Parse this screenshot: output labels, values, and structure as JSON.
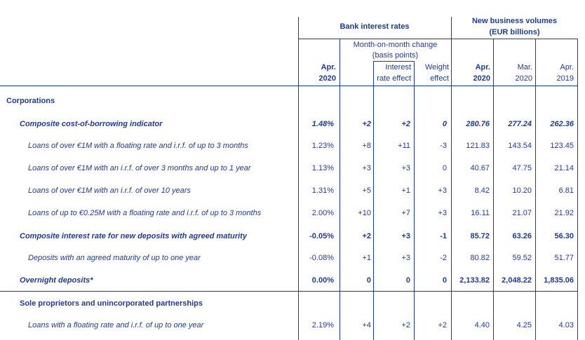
{
  "header": {
    "bank_rates": "Bank interest rates",
    "volumes_line1": "New business volumes",
    "volumes_line2": "(EUR billions)",
    "mom_line1": "Month-on-month change",
    "mom_line2": "(basis points)",
    "apr_label": "Apr.",
    "year_2020": "2020",
    "interest_line1": "Interest",
    "interest_line2": "rate effect",
    "weight_line1": "Weight",
    "weight_line2": "effect",
    "vol_apr": "Apr.",
    "vol_apr_year": "2020",
    "vol_mar": "Mar.",
    "vol_mar_year": "2020",
    "vol_apr19": "Apr.",
    "vol_apr19_year": "2019"
  },
  "sections": {
    "corporations": "Corporations",
    "sole": "Sole proprietors and unincorporated partnerships"
  },
  "rows": [
    {
      "label": "Composite cost-of-borrowing indicator",
      "rate": "1.48%",
      "mom": "+2",
      "ire": "+2",
      "we": "0",
      "apr20": "280.76",
      "mar20": "277.24",
      "apr19": "262.36"
    },
    {
      "label": "Loans of over €1M with a floating rate and i.r.f. of up to 3 months",
      "rate": "1.23%",
      "mom": "+8",
      "ire": "+11",
      "we": "-3",
      "apr20": "121.83",
      "mar20": "143.54",
      "apr19": "123.45"
    },
    {
      "label": "Loans of over €1M with an i.r.f. of over 3 months and up to 1 year",
      "rate": "1.13%",
      "mom": "+3",
      "ire": "+3",
      "we": "0",
      "apr20": "40.67",
      "mar20": "47.75",
      "apr19": "21.14"
    },
    {
      "label": "Loans of over €1M with an i.r.f. of over 10 years",
      "rate": "1.31%",
      "mom": "+5",
      "ire": "+1",
      "we": "+3",
      "apr20": "8.42",
      "mar20": "10.20",
      "apr19": "6.81"
    },
    {
      "label": "Loans of up to €0.25M with a floating rate and i.r.f. of up to 3 months",
      "rate": "2.00%",
      "mom": "+10",
      "ire": "+7",
      "we": "+3",
      "apr20": "16.11",
      "mar20": "21.07",
      "apr19": "21.92"
    },
    {
      "label": "Composite interest rate for new deposits with agreed maturity",
      "rate": "-0.05%",
      "mom": "+2",
      "ire": "+3",
      "we": "-1",
      "apr20": "85.72",
      "mar20": "63.26",
      "apr19": "56.30"
    },
    {
      "label": "Deposits with an agreed maturity of up to one year",
      "rate": "-0.08%",
      "mom": "+1",
      "ire": "+3",
      "we": "-2",
      "apr20": "80.82",
      "mar20": "59.52",
      "apr19": "51.77"
    },
    {
      "label": "Overnight deposits*",
      "rate": "0.00%",
      "mom": "0",
      "ire": "0",
      "we": "0",
      "apr20": "2,133.82",
      "mar20": "2,048.22",
      "apr19": "1,835.06"
    },
    {
      "label": "Loans with a floating rate and i.r.f. of up to one year",
      "rate": "2.19%",
      "mom": "+4",
      "ire": "+2",
      "we": "+2",
      "apr20": "4.40",
      "mar20": "4.25",
      "apr19": "4.03"
    }
  ]
}
